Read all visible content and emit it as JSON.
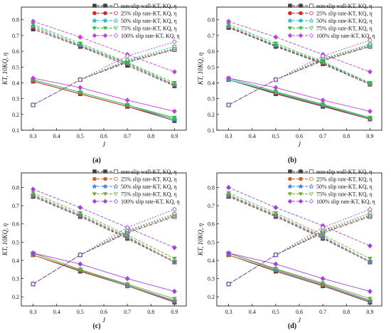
{
  "chart_data": [
    {
      "type": "line",
      "panel_label": "(a)",
      "xlabel": "J",
      "ylabel": "KT, 10KQ, η",
      "xlim": [
        0.25,
        0.95
      ],
      "ylim": [
        0.1,
        0.88
      ],
      "x_ticks": [
        "0.3",
        "0.4",
        "0.5",
        "0.6",
        "0.7",
        "0.8",
        "0.9"
      ],
      "y_ticks": [
        "0.1",
        "0.2",
        "0.3",
        "0.4",
        "0.5",
        "0.6",
        "0.7",
        "0.8"
      ],
      "x": [
        0.3,
        0.5,
        0.7,
        0.9
      ],
      "legend_position": "top-right",
      "legend": [
        "non-slip wall-KT, KQ, η",
        "25% slip rate-KT, KQ, η",
        "50% slip rate-KT, KQ, η",
        "75% slip rate-KT, KQ, η",
        "100% slip rate-KT, KQ, η"
      ],
      "series": [
        {
          "color": "#404040",
          "KT": [
            0.41,
            0.33,
            0.25,
            0.16
          ],
          "KQ10": [
            0.74,
            0.63,
            0.51,
            0.38
          ],
          "eta": [
            0.26,
            0.42,
            0.53,
            0.61
          ]
        },
        {
          "color": "#e02020",
          "KT": [
            0.41,
            0.33,
            0.25,
            0.17
          ],
          "KQ10": [
            0.75,
            0.635,
            0.52,
            0.385
          ],
          "eta": [
            0.26,
            0.42,
            0.535,
            0.615
          ]
        },
        {
          "color": "#20b8c8",
          "KT": [
            0.42,
            0.34,
            0.26,
            0.17
          ],
          "KQ10": [
            0.76,
            0.64,
            0.525,
            0.39
          ],
          "eta": [
            0.26,
            0.42,
            0.54,
            0.62
          ]
        },
        {
          "color": "#30c030",
          "KT": [
            0.42,
            0.34,
            0.26,
            0.18
          ],
          "KQ10": [
            0.77,
            0.65,
            0.53,
            0.4
          ],
          "eta": [
            0.26,
            0.42,
            0.545,
            0.63
          ]
        },
        {
          "color": "#c040e0",
          "KT": [
            0.43,
            0.37,
            0.29,
            0.22
          ],
          "KQ10": [
            0.79,
            0.69,
            0.58,
            0.47
          ],
          "eta": [
            0.26,
            0.42,
            0.57,
            0.66
          ]
        }
      ]
    },
    {
      "type": "line",
      "panel_label": "(b)",
      "xlabel": "J",
      "ylabel": "KT, 10KQ, η",
      "xlim": [
        0.25,
        0.95
      ],
      "ylim": [
        0.1,
        0.88
      ],
      "x_ticks": [
        "0.3",
        "0.4",
        "0.5",
        "0.6",
        "0.7",
        "0.8",
        "0.9"
      ],
      "y_ticks": [
        "0.1",
        "0.2",
        "0.3",
        "0.4",
        "0.5",
        "0.6",
        "0.7",
        "0.8"
      ],
      "x": [
        0.3,
        0.5,
        0.7,
        0.9
      ],
      "legend_position": "top-right",
      "legend": [
        "non-slip wall-KT, KQ, η",
        "25% slip rate-KT, KQ, η",
        "50% slip rate-KT, KQ, η",
        "75% slip rate-KT, KQ, η",
        "100% slip rate-KT, KQ, η"
      ],
      "series": [
        {
          "color": "#404040",
          "KT": [
            0.42,
            0.33,
            0.25,
            0.17
          ],
          "KQ10": [
            0.75,
            0.63,
            0.52,
            0.39
          ],
          "eta": [
            0.26,
            0.42,
            0.54,
            0.63
          ]
        },
        {
          "color": "#e02020",
          "KT": [
            0.42,
            0.335,
            0.255,
            0.17
          ],
          "KQ10": [
            0.755,
            0.635,
            0.525,
            0.39
          ],
          "eta": [
            0.26,
            0.42,
            0.545,
            0.635
          ]
        },
        {
          "color": "#20b8c8",
          "KT": [
            0.42,
            0.34,
            0.26,
            0.175
          ],
          "KQ10": [
            0.76,
            0.64,
            0.53,
            0.395
          ],
          "eta": [
            0.26,
            0.42,
            0.55,
            0.64
          ]
        },
        {
          "color": "#30c030",
          "KT": [
            0.43,
            0.345,
            0.265,
            0.18
          ],
          "KQ10": [
            0.77,
            0.65,
            0.535,
            0.4
          ],
          "eta": [
            0.26,
            0.42,
            0.555,
            0.645
          ]
        },
        {
          "color": "#c040e0",
          "KT": [
            0.43,
            0.37,
            0.29,
            0.22
          ],
          "KQ10": [
            0.79,
            0.69,
            0.58,
            0.47
          ],
          "eta": [
            0.26,
            0.42,
            0.57,
            0.67
          ]
        }
      ]
    },
    {
      "type": "line",
      "panel_label": "(c)",
      "xlabel": "J",
      "ylabel": "KT, 10KQ, η",
      "xlim": [
        0.25,
        0.95
      ],
      "ylim": [
        0.15,
        0.88
      ],
      "x_ticks": [
        "0.3",
        "0.4",
        "0.5",
        "0.6",
        "0.7",
        "0.8",
        "0.9"
      ],
      "y_ticks": [
        "0.2",
        "0.3",
        "0.4",
        "0.5",
        "0.6",
        "0.7",
        "0.8"
      ],
      "x": [
        0.3,
        0.5,
        0.7,
        0.9
      ],
      "legend_position": "top-right",
      "legend": [
        "non-slip wall-KT, KQ, η",
        "25% slip rate-KT, KQ, η",
        "50% slip rate-KT, KQ, η",
        "75% slip rate-KT, KQ, η",
        "100% slip rate-KT, KQ, η"
      ],
      "series": [
        {
          "color": "#404040",
          "KT": [
            0.43,
            0.34,
            0.26,
            0.17
          ],
          "KQ10": [
            0.75,
            0.64,
            0.52,
            0.39
          ],
          "eta": [
            0.27,
            0.43,
            0.55,
            0.64
          ]
        },
        {
          "color": "#d06020",
          "KT": [
            0.43,
            0.345,
            0.26,
            0.175
          ],
          "KQ10": [
            0.755,
            0.645,
            0.525,
            0.39
          ],
          "eta": [
            0.27,
            0.43,
            0.555,
            0.645
          ]
        },
        {
          "color": "#4080e0",
          "KT": [
            0.44,
            0.35,
            0.265,
            0.18
          ],
          "KQ10": [
            0.76,
            0.65,
            0.53,
            0.395
          ],
          "eta": [
            0.27,
            0.43,
            0.56,
            0.65
          ]
        },
        {
          "color": "#70b020",
          "KT": [
            0.44,
            0.35,
            0.27,
            0.19
          ],
          "KQ10": [
            0.77,
            0.66,
            0.54,
            0.41
          ],
          "eta": [
            0.27,
            0.43,
            0.565,
            0.655
          ]
        },
        {
          "color": "#a040e0",
          "KT": [
            0.44,
            0.38,
            0.3,
            0.23
          ],
          "KQ10": [
            0.79,
            0.69,
            0.58,
            0.47
          ],
          "eta": [
            0.27,
            0.43,
            0.58,
            0.68
          ]
        }
      ]
    },
    {
      "type": "line",
      "panel_label": "(d)",
      "xlabel": "J",
      "ylabel": "KT, 10KQ, η",
      "xlim": [
        0.25,
        0.95
      ],
      "ylim": [
        0.15,
        0.88
      ],
      "x_ticks": [
        "0.3",
        "0.4",
        "0.5",
        "0.6",
        "0.7",
        "0.8",
        "0.9"
      ],
      "y_ticks": [
        "0.2",
        "0.3",
        "0.4",
        "0.5",
        "0.6",
        "0.7",
        "0.8"
      ],
      "x": [
        0.3,
        0.5,
        0.7,
        0.9
      ],
      "legend_position": "top-right",
      "legend": [
        "non-slip wall-KT, KQ, η",
        "25% slip rate-KT, KQ, η",
        "50% slip rate-KT, KQ, η",
        "75% slip rate-KT, KQ, η",
        "100% slip rate-KT, KQ, η"
      ],
      "series": [
        {
          "color": "#404040",
          "KT": [
            0.43,
            0.34,
            0.26,
            0.17
          ],
          "KQ10": [
            0.75,
            0.64,
            0.52,
            0.39
          ],
          "eta": [
            0.27,
            0.43,
            0.55,
            0.64
          ]
        },
        {
          "color": "#d06020",
          "KT": [
            0.43,
            0.345,
            0.265,
            0.175
          ],
          "KQ10": [
            0.755,
            0.645,
            0.525,
            0.39
          ],
          "eta": [
            0.27,
            0.43,
            0.555,
            0.645
          ]
        },
        {
          "color": "#4080e0",
          "KT": [
            0.44,
            0.35,
            0.27,
            0.18
          ],
          "KQ10": [
            0.76,
            0.65,
            0.53,
            0.395
          ],
          "eta": [
            0.27,
            0.43,
            0.56,
            0.65
          ]
        },
        {
          "color": "#70b020",
          "KT": [
            0.44,
            0.355,
            0.275,
            0.19
          ],
          "KQ10": [
            0.77,
            0.66,
            0.54,
            0.41
          ],
          "eta": [
            0.27,
            0.43,
            0.565,
            0.66
          ]
        },
        {
          "color": "#a040e0",
          "KT": [
            0.44,
            0.38,
            0.3,
            0.23
          ],
          "KQ10": [
            0.8,
            0.69,
            0.59,
            0.48
          ],
          "eta": [
            0.27,
            0.43,
            0.58,
            0.68
          ]
        }
      ]
    }
  ]
}
